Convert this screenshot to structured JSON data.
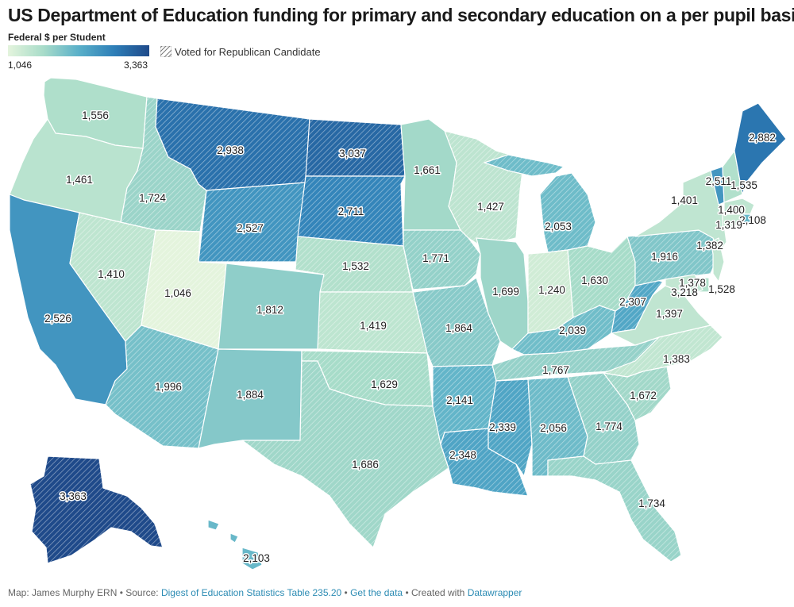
{
  "title": "US Department of Education funding for primary and secondary education on a per pupil basis",
  "legend": {
    "title": "Federal $ per Student",
    "min": "1,046",
    "max": "3,363",
    "pattern_label": "Voted for Republican Candidate",
    "colors": [
      "#e4f4dd",
      "#a8dcc9",
      "#5ab0c9",
      "#2e7fb8",
      "#1f4a8a"
    ]
  },
  "states": [
    {
      "abbr": "WA",
      "value": "1,556",
      "republican": false
    },
    {
      "abbr": "OR",
      "value": "1,461",
      "republican": false
    },
    {
      "abbr": "CA",
      "value": "2,526",
      "republican": false
    },
    {
      "abbr": "NV",
      "value": "1,410",
      "republican": true
    },
    {
      "abbr": "ID",
      "value": "1,724",
      "republican": true
    },
    {
      "abbr": "MT",
      "value": "2,938",
      "republican": true
    },
    {
      "abbr": "WY",
      "value": "2,527",
      "republican": true
    },
    {
      "abbr": "UT",
      "value": "1,046",
      "republican": true
    },
    {
      "abbr": "AZ",
      "value": "1,996",
      "republican": true
    },
    {
      "abbr": "CO",
      "value": "1,812",
      "republican": false
    },
    {
      "abbr": "NM",
      "value": "1,884",
      "republican": false
    },
    {
      "abbr": "ND",
      "value": "3,037",
      "republican": true
    },
    {
      "abbr": "SD",
      "value": "2,711",
      "republican": true
    },
    {
      "abbr": "NE",
      "value": "1,532",
      "republican": true
    },
    {
      "abbr": "KS",
      "value": "1,419",
      "republican": true
    },
    {
      "abbr": "OK",
      "value": "1,629",
      "republican": true
    },
    {
      "abbr": "TX",
      "value": "1,686",
      "republican": true
    },
    {
      "abbr": "MN",
      "value": "1,661",
      "republican": false
    },
    {
      "abbr": "IA",
      "value": "1,771",
      "republican": true
    },
    {
      "abbr": "MO",
      "value": "1,864",
      "republican": true
    },
    {
      "abbr": "AR",
      "value": "2,141",
      "republican": true
    },
    {
      "abbr": "LA",
      "value": "2,348",
      "republican": true
    },
    {
      "abbr": "WI",
      "value": "1,427",
      "republican": true
    },
    {
      "abbr": "IL",
      "value": "1,699",
      "republican": false
    },
    {
      "abbr": "MI",
      "value": "2,053",
      "republican": true
    },
    {
      "abbr": "IN",
      "value": "1,240",
      "republican": true
    },
    {
      "abbr": "KY",
      "value": "2,039",
      "republican": true
    },
    {
      "abbr": "TN",
      "value": "1,767",
      "republican": true
    },
    {
      "abbr": "MS",
      "value": "2,339",
      "republican": true
    },
    {
      "abbr": "AL",
      "value": "2,056",
      "republican": true
    },
    {
      "abbr": "OH",
      "value": "1,630",
      "republican": true
    },
    {
      "abbr": "WV",
      "value": "2,307",
      "republican": true
    },
    {
      "abbr": "VA",
      "value": "1,397",
      "republican": false
    },
    {
      "abbr": "NC",
      "value": "1,383",
      "republican": true
    },
    {
      "abbr": "SC",
      "value": "1,672",
      "republican": true
    },
    {
      "abbr": "GA",
      "value": "1,774",
      "republican": true
    },
    {
      "abbr": "FL",
      "value": "1,734",
      "republican": true
    },
    {
      "abbr": "PA",
      "value": "1,916",
      "republican": true
    },
    {
      "abbr": "NY",
      "value": "1,401",
      "republican": false
    },
    {
      "abbr": "VT",
      "value": "2,511",
      "republican": false
    },
    {
      "abbr": "NH",
      "value": "1,535",
      "republican": false
    },
    {
      "abbr": "ME",
      "value": "2,882",
      "republican": false
    },
    {
      "abbr": "MA",
      "value": "1,400",
      "republican": false
    },
    {
      "abbr": "RI",
      "value": "2,108",
      "republican": false
    },
    {
      "abbr": "CT",
      "value": "1,319",
      "republican": false
    },
    {
      "abbr": "NJ",
      "value": "1,382",
      "republican": false
    },
    {
      "abbr": "DE",
      "value": "1,528",
      "republican": false
    },
    {
      "abbr": "MD",
      "value": "1,378",
      "republican": false
    },
    {
      "abbr": "DC",
      "value": "3,218",
      "republican": false
    },
    {
      "abbr": "AK",
      "value": "3,363",
      "republican": true
    },
    {
      "abbr": "HI",
      "value": "2,103",
      "republican": false
    }
  ],
  "footer": {
    "prefix": "Map: James Murphy ERN • Source: ",
    "source_link": "Digest of Education Statistics Table 235.20",
    "sep1": " • ",
    "data_link": "Get the data",
    "sep2": " • Created with ",
    "tool_link": "Datawrapper"
  }
}
